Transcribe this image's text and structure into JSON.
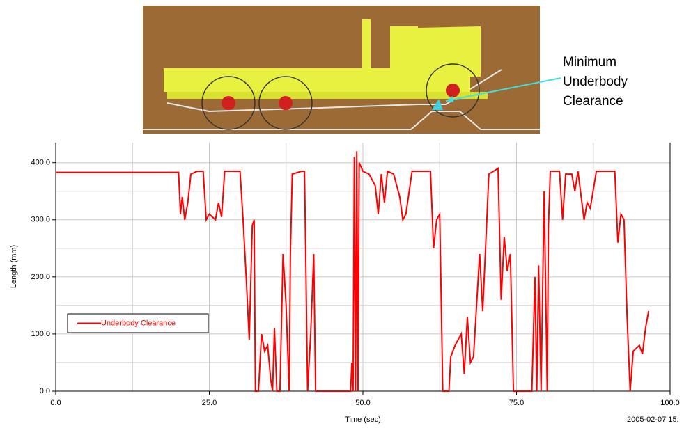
{
  "chart_data": {
    "type": "line",
    "x": [
      0,
      20,
      20.3,
      20.6,
      21,
      21.5,
      22,
      23,
      24,
      24.5,
      25,
      26,
      26.5,
      27,
      27.5,
      30,
      30.5,
      31,
      31.5,
      32,
      32.3,
      32.5,
      33,
      33.5,
      34,
      34.5,
      35,
      35.3,
      35.6,
      36,
      36.5,
      37,
      37.5,
      38,
      38.2,
      38.5,
      40,
      40.5,
      41,
      41.5,
      42,
      42.3,
      48,
      48.2,
      48.4,
      48.6,
      48.8,
      49,
      49.2,
      49.4,
      50,
      51,
      52,
      52.5,
      53,
      53.5,
      54,
      55,
      56,
      56.5,
      57,
      58,
      61,
      61.5,
      62,
      62.5,
      63,
      64,
      64.3,
      65,
      66,
      66.5,
      67,
      67.5,
      68,
      68.5,
      69,
      69.5,
      70,
      70.5,
      72,
      72.5,
      73,
      73.5,
      74,
      74.5,
      77.5,
      78,
      78.3,
      78.6,
      79,
      79.5,
      80,
      80.2,
      80.5,
      82,
      82.5,
      83,
      84,
      84.5,
      85,
      86,
      86.5,
      87,
      88,
      91,
      91.5,
      92,
      92.5,
      93,
      93.5,
      94,
      95,
      95.5,
      96,
      96.5
    ],
    "series": [
      {
        "name": "Underbody Clearance",
        "color": "#ff0000",
        "values": [
          383,
          383,
          310,
          340,
          300,
          330,
          380,
          385,
          385,
          300,
          310,
          300,
          330,
          305,
          385,
          385,
          300,
          200,
          90,
          290,
          300,
          0,
          0,
          100,
          70,
          80,
          20,
          0,
          110,
          0,
          0,
          240,
          150,
          0,
          240,
          380,
          385,
          385,
          0,
          100,
          240,
          0,
          0,
          50,
          0,
          410,
          0,
          420,
          0,
          400,
          385,
          380,
          360,
          310,
          380,
          330,
          385,
          380,
          340,
          300,
          310,
          385,
          385,
          250,
          300,
          310,
          0,
          0,
          60,
          80,
          100,
          30,
          130,
          50,
          60,
          150,
          240,
          140,
          260,
          380,
          390,
          160,
          270,
          210,
          240,
          0,
          0,
          200,
          0,
          220,
          0,
          350,
          0,
          290,
          385,
          385,
          300,
          380,
          380,
          350,
          385,
          300,
          330,
          320,
          385,
          385,
          260,
          310,
          300,
          130,
          0,
          70,
          80,
          65,
          110,
          140
        ]
      }
    ],
    "xlim": [
      0,
      100
    ],
    "ylim": [
      0,
      435
    ],
    "xticks": [
      {
        "value": 0,
        "label": "0.0"
      },
      {
        "value": 25,
        "label": "25.0"
      },
      {
        "value": 50,
        "label": "50.0"
      },
      {
        "value": 75,
        "label": "75.0"
      },
      {
        "value": 100,
        "label": "100.0"
      }
    ],
    "yticks": [
      {
        "value": 0,
        "label": "0.0"
      },
      {
        "value": 100,
        "label": "100.0"
      },
      {
        "value": 200,
        "label": "200.0"
      },
      {
        "value": 300,
        "label": "300.0"
      },
      {
        "value": 400,
        "label": "400.0"
      }
    ],
    "minor_xticks": [
      12.5,
      37.5,
      62.5,
      87.5
    ],
    "minor_yticks": [
      50,
      150,
      250,
      350
    ],
    "grid": true,
    "xlabel": "Time (sec)",
    "ylabel": "Length (mm)",
    "timestamp": "2005-02-07 15:",
    "annotation": [
      "Minimum",
      "Underbody",
      "Clearance"
    ]
  }
}
